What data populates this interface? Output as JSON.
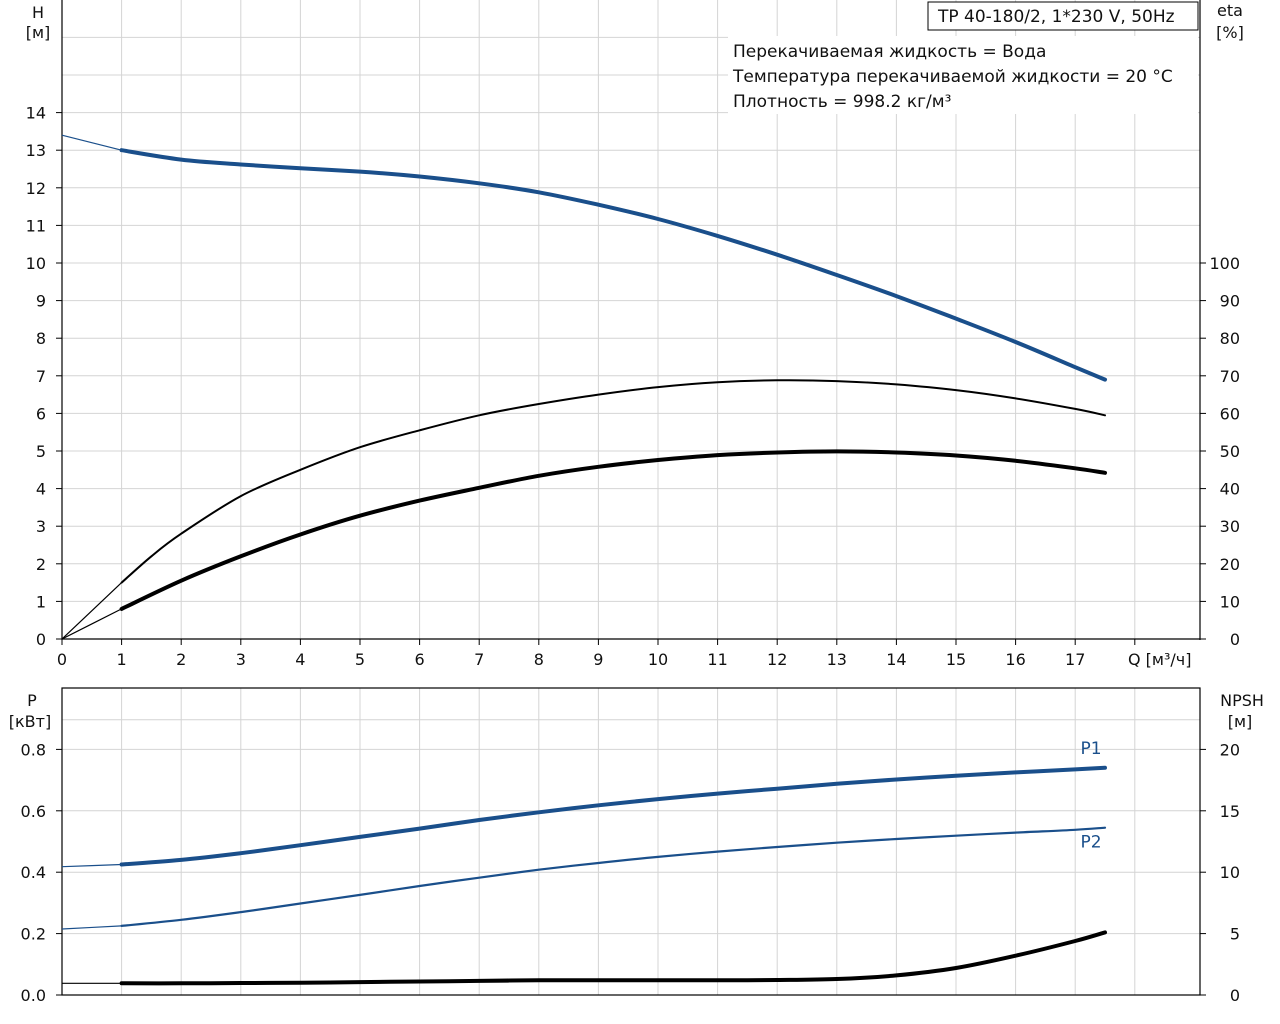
{
  "chart_data": [
    {
      "type": "line",
      "title_box": "TP 40-180/2, 1*230 V, 50Hz",
      "info_lines": [
        "Перекачиваемая жидкость = Вода",
        "Температура перекачиваемой жидкости = 20 °C",
        "Плотность = 998.2 кг/м³"
      ],
      "ylabel_left": [
        "H",
        "[м]"
      ],
      "ylabel_right": [
        "eta",
        "[%]"
      ],
      "xlabel": "Q [м³/ч]",
      "xlim": [
        0,
        19
      ],
      "ylim_left": [
        0,
        17
      ],
      "ylim_right": [
        0,
        170
      ],
      "x_ticks": [
        0,
        1,
        2,
        3,
        4,
        5,
        6,
        7,
        8,
        9,
        10,
        11,
        12,
        13,
        14,
        15,
        16,
        17
      ],
      "y_ticks_left": [
        0,
        1,
        2,
        3,
        4,
        5,
        6,
        7,
        8,
        9,
        10,
        11,
        12,
        13,
        14
      ],
      "y_ticks_right": [
        0,
        10,
        20,
        30,
        40,
        50,
        60,
        70,
        80,
        90,
        100
      ],
      "grid": true,
      "series": [
        {
          "axis": "left",
          "color": "#1a4f8b",
          "extension_to_zero": [
            [
              0,
              13.4
            ],
            [
              1,
              13.0
            ]
          ],
          "x": [
            1,
            2,
            3,
            4,
            5,
            6,
            7,
            8,
            9,
            10,
            11,
            12,
            13,
            14,
            15,
            16,
            17,
            17.5
          ],
          "y": [
            13.0,
            12.75,
            12.62,
            12.52,
            12.43,
            12.3,
            12.12,
            11.88,
            11.55,
            11.17,
            10.72,
            10.22,
            9.68,
            9.12,
            8.52,
            7.9,
            7.23,
            6.9
          ]
        },
        {
          "axis": "right",
          "color": "#000000",
          "extension_to_zero": [
            [
              0,
              0
            ],
            [
              1,
              15
            ]
          ],
          "x": [
            1,
            1.5,
            2,
            3,
            4,
            5,
            6,
            7,
            8,
            9,
            10,
            11,
            12,
            13,
            14,
            15,
            16,
            17,
            17.5
          ],
          "y": [
            15,
            22,
            28,
            38,
            45,
            51,
            55.5,
            59.5,
            62.5,
            65,
            67,
            68.3,
            68.8,
            68.6,
            67.7,
            66.2,
            64,
            61.2,
            59.5
          ]
        },
        {
          "axis": "right",
          "color": "#000000",
          "extension_to_zero": [
            [
              0,
              0
            ],
            [
              1,
              8
            ]
          ],
          "x": [
            1,
            2,
            3,
            4,
            5,
            6,
            7,
            8,
            9,
            10,
            11,
            12,
            13,
            14,
            15,
            16,
            17,
            17.5
          ],
          "y": [
            8,
            15.5,
            22,
            27.8,
            32.8,
            36.8,
            40.2,
            43.4,
            45.8,
            47.6,
            48.9,
            49.6,
            49.9,
            49.6,
            48.8,
            47.4,
            45.4,
            44.2
          ]
        }
      ]
    },
    {
      "type": "line",
      "ylabel_left": [
        "P",
        "[кВт]"
      ],
      "ylabel_right": [
        "NPSH",
        "[м]"
      ],
      "xlim": [
        0,
        19
      ],
      "ylim_left": [
        0,
        0.9
      ],
      "ylim_right": [
        0,
        22.5
      ],
      "y_ticks_left": [
        "0.0",
        "0.2",
        "0.4",
        "0.6",
        "0.8"
      ],
      "y_ticks_right": [
        0,
        5,
        10,
        15,
        20
      ],
      "grid": true,
      "series": [
        {
          "name": "P1",
          "axis": "left",
          "color": "#1a4f8b",
          "extension_to_zero": [
            [
              0,
              0.418
            ],
            [
              1,
              0.425
            ]
          ],
          "x": [
            1,
            2,
            3,
            4,
            5,
            6,
            7,
            8,
            9,
            10,
            11,
            12,
            13,
            14,
            15,
            16,
            17,
            17.5
          ],
          "y": [
            0.425,
            0.44,
            0.462,
            0.488,
            0.515,
            0.542,
            0.57,
            0.595,
            0.618,
            0.638,
            0.656,
            0.672,
            0.688,
            0.702,
            0.714,
            0.725,
            0.735,
            0.74
          ]
        },
        {
          "name": "P2",
          "axis": "left",
          "color": "#1a4f8b",
          "extension_to_zero": [
            [
              0,
              0.215
            ],
            [
              1,
              0.225
            ]
          ],
          "x": [
            1,
            2,
            3,
            4,
            5,
            6,
            7,
            8,
            9,
            10,
            11,
            12,
            13,
            14,
            15,
            16,
            17,
            17.5
          ],
          "y": [
            0.225,
            0.245,
            0.27,
            0.298,
            0.326,
            0.355,
            0.382,
            0.408,
            0.43,
            0.45,
            0.467,
            0.482,
            0.496,
            0.508,
            0.519,
            0.529,
            0.538,
            0.545
          ]
        },
        {
          "axis": "right",
          "color": "#000000",
          "extension_to_zero": [
            [
              0,
              0.95
            ],
            [
              1,
              0.95
            ]
          ],
          "x": [
            1,
            2,
            3,
            4,
            5,
            6,
            7,
            8,
            9,
            10,
            11,
            12,
            13,
            14,
            15,
            16,
            17,
            17.5
          ],
          "y": [
            0.95,
            0.95,
            0.98,
            1.0,
            1.05,
            1.1,
            1.15,
            1.2,
            1.2,
            1.2,
            1.2,
            1.22,
            1.3,
            1.6,
            2.2,
            3.2,
            4.4,
            5.1
          ]
        }
      ]
    }
  ]
}
